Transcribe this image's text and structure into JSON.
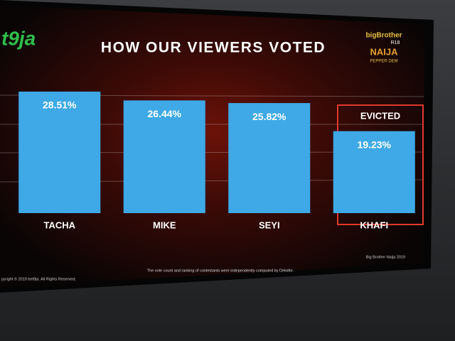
{
  "chart_data": {
    "type": "bar",
    "title": "HOW OUR VIEWERS VOTED",
    "categories": [
      "TACHA",
      "MIKE",
      "SEYI",
      "KHAFI"
    ],
    "values": [
      28.51,
      26.44,
      25.82,
      19.23
    ],
    "value_labels": [
      "28.51%",
      "26.44%",
      "25.82%",
      "19.23%"
    ],
    "color": "#3ea9e6",
    "annotation": "EVICTED",
    "footnote": "The vote count and ranking of contestants were independently computed by Deloitte.",
    "copyright": "pyright © 2019 bet9ja. All Rights Reserved.",
    "credit": "Big Brother Naija 2019",
    "logo_left": "t9ja",
    "logo_right": [
      "bigBrother",
      "R18",
      "NAIJA",
      "PEPPER DEM"
    ]
  }
}
